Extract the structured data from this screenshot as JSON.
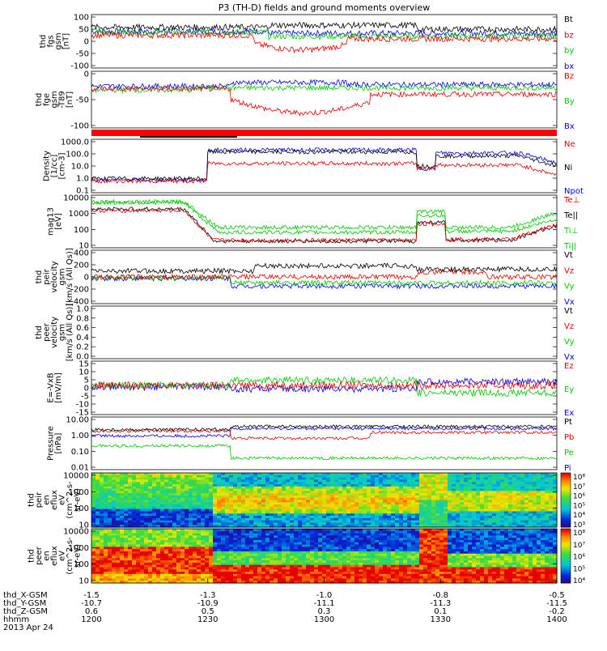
{
  "title": "P3 (TH-D) fields and ground moments overview",
  "colors": {
    "black": "#000000",
    "red": "#e60000",
    "green": "#00c800",
    "blue": "#0000e6"
  },
  "chart_data": [
    {
      "type": "line",
      "id": "fgs",
      "ylabel": [
        "thd",
        "fgs",
        "gsm",
        "[nT]"
      ],
      "yticks": [
        "100",
        "50",
        "0",
        "-50",
        "-100"
      ],
      "series": [
        {
          "name": "Bt",
          "color": "black"
        },
        {
          "name": "bz",
          "color": "red"
        },
        {
          "name": "by",
          "color": "green"
        },
        {
          "name": "bx",
          "color": "blue"
        }
      ]
    },
    {
      "type": "line",
      "id": "fge",
      "ylabel": [
        "thd",
        "fge",
        "gsm",
        "-T89",
        "[nT]"
      ],
      "yticks": [
        "0",
        "-50",
        "-100"
      ],
      "series": [
        {
          "name": "Bz",
          "color": "red"
        },
        {
          "name": "By",
          "color": "green"
        },
        {
          "name": "Bx",
          "color": "blue"
        }
      ]
    },
    {
      "type": "line",
      "id": "density",
      "scale": "log",
      "ylabel": [
        "Density",
        "[1/cc]",
        "[cm-3]"
      ],
      "yticks": [
        "1000.0",
        "100.0",
        "10.0",
        "1.0",
        "0.1"
      ],
      "series": [
        {
          "name": "Ne",
          "color": "red"
        },
        {
          "name": "Ni",
          "color": "black"
        },
        {
          "name": "Npot",
          "color": "blue"
        }
      ]
    },
    {
      "type": "line",
      "id": "temp",
      "scale": "log",
      "ylabel": [
        "mag13",
        "[eV]"
      ],
      "yticks": [
        "10000",
        "1000",
        "100",
        "10"
      ],
      "series": [
        {
          "name": "Te⊥",
          "color": "red"
        },
        {
          "name": "Te||",
          "color": "black"
        },
        {
          "name": "Ti⊥",
          "color": "green"
        },
        {
          "name": "Ti||",
          "color": "green"
        }
      ]
    },
    {
      "type": "line",
      "id": "peir",
      "ylabel": [
        "thd",
        "peir",
        "velocity",
        "gsm",
        "[km/s (All Qs)]"
      ],
      "yticks": [
        "400",
        "200",
        "0",
        "-200",
        "-400"
      ],
      "series": [
        {
          "name": "Vt",
          "color": "black"
        },
        {
          "name": "Vz",
          "color": "red"
        },
        {
          "name": "Vy",
          "color": "green"
        },
        {
          "name": "Vx",
          "color": "blue"
        }
      ]
    },
    {
      "type": "line",
      "id": "peer",
      "ylabel": [
        "thd",
        "peer",
        "velocity",
        "gsm",
        "[km/s (All Qs)]"
      ],
      "yticks": [
        "1.0",
        "0.8",
        "0.6",
        "0.4",
        "0.2",
        "0.0"
      ],
      "series": [
        {
          "name": "Vt",
          "color": "black"
        },
        {
          "name": "Vz",
          "color": "red"
        },
        {
          "name": "Vy",
          "color": "green"
        },
        {
          "name": "Vx",
          "color": "blue"
        }
      ]
    },
    {
      "type": "line",
      "id": "efield",
      "ylabel": [
        "E=-VxB",
        "[mV/m]"
      ],
      "yticks": [
        "15",
        "10",
        "5",
        "0",
        "-5",
        "-10",
        "-15"
      ],
      "series": [
        {
          "name": "Ez",
          "color": "red"
        },
        {
          "name": "Ey",
          "color": "green"
        },
        {
          "name": "Ex",
          "color": "blue"
        }
      ]
    },
    {
      "type": "line",
      "id": "pressure",
      "scale": "log",
      "ylabel": [
        "Pressure",
        "[nPa]"
      ],
      "yticks": [
        "10.00",
        "1.00",
        "0.10",
        "0.01"
      ],
      "series": [
        {
          "name": "Pt",
          "color": "black"
        },
        {
          "name": "Pb",
          "color": "red"
        },
        {
          "name": "Pe",
          "color": "green"
        },
        {
          "name": "Pi",
          "color": "blue"
        }
      ]
    },
    {
      "type": "heatmap",
      "id": "peir_spec",
      "ylabel": [
        "thd",
        "peir",
        "en",
        "eflux",
        "eV",
        "(cm^2-s-",
        "sr-eV)"
      ],
      "yticks": [
        "10000",
        "1000",
        "100",
        "10"
      ],
      "colorbar_labels": [
        "10⁸",
        "10⁷",
        "10⁶",
        "10⁵",
        "10⁴",
        "10³"
      ]
    },
    {
      "type": "heatmap",
      "id": "peer_spec",
      "ylabel": [
        "thd",
        "peer",
        "en",
        "eflux",
        "eV",
        "(cm^2-s-",
        "sr-eV)"
      ],
      "yticks": [
        "10000",
        "1000",
        "100",
        "10"
      ],
      "colorbar_labels": [
        "10⁸",
        "10⁷",
        "10⁶",
        "10⁵",
        "10⁴"
      ]
    }
  ],
  "xaxis": {
    "rows": [
      {
        "label": "thd_X-GSM",
        "values": [
          "-1.5",
          "-1.3",
          "-1.0",
          "-0.8",
          "-0.5"
        ]
      },
      {
        "label": "thd_Y-GSM",
        "values": [
          "-10.7",
          "-10.9",
          "-11.1",
          "-11.3",
          "-11.5"
        ]
      },
      {
        "label": "thd_Z-GSM",
        "values": [
          "0.6",
          "0.5",
          "0.3",
          "0.1",
          "-0.2"
        ]
      },
      {
        "label": "hhmm",
        "values": [
          "1200",
          "1230",
          "1300",
          "1330",
          "1400"
        ]
      }
    ],
    "date": "2013 Apr 24"
  }
}
